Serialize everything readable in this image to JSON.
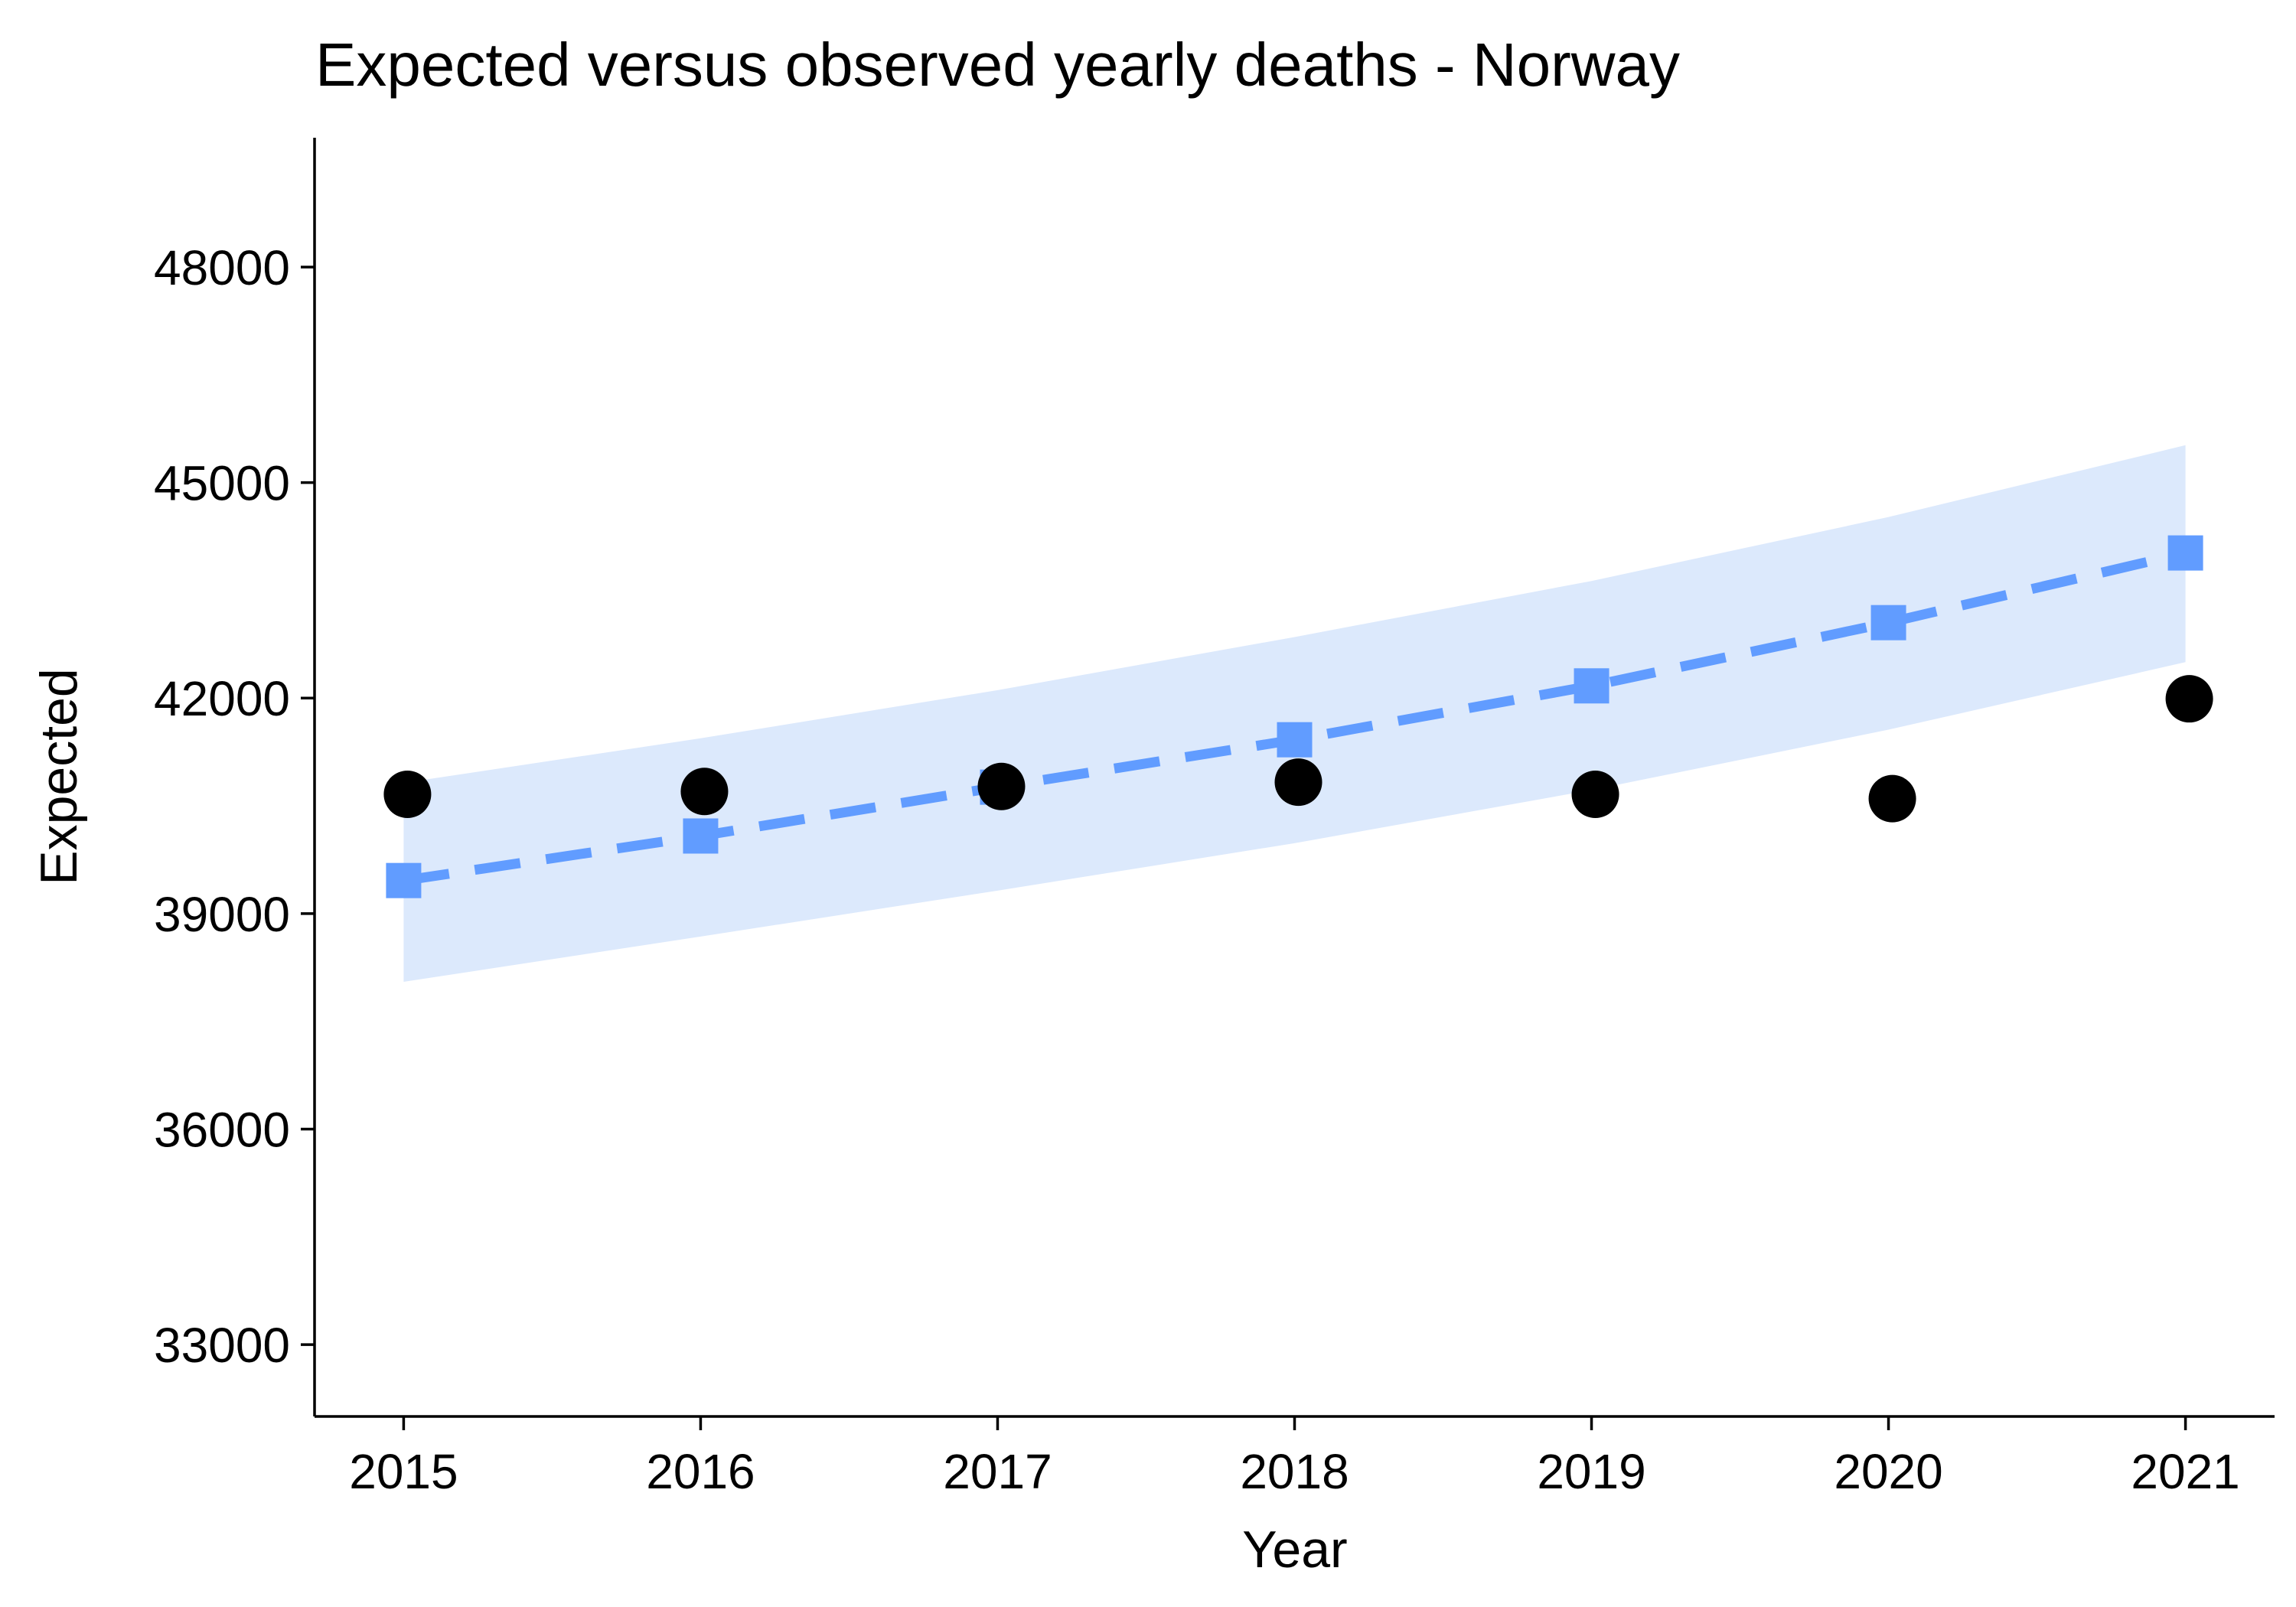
{
  "chart_data": {
    "type": "line",
    "title": "Expected versus observed yearly deaths - Norway",
    "xlabel": "Year",
    "ylabel": "Expected",
    "x": [
      2015,
      2016,
      2017,
      2018,
      2019,
      2020,
      2021
    ],
    "x_tick_labels": [
      "2015",
      "2016",
      "2017",
      "2018",
      "2019",
      "2020",
      "2021"
    ],
    "y_ticks": [
      33000,
      36000,
      39000,
      42000,
      45000,
      48000
    ],
    "y_tick_labels": [
      "33000",
      "36000",
      "39000",
      "42000",
      "45000",
      "48000"
    ],
    "xlim": [
      2014.7,
      2021.3
    ],
    "ylim": [
      32000,
      49800
    ],
    "grid": false,
    "series": [
      {
        "name": "",
        "kind": "dashed-line-with-square-markers",
        "color": "#619cff",
        "values": [
          39460,
          40080,
          40760,
          41420,
          42170,
          43050,
          44020
        ]
      },
      {
        "name": "",
        "kind": "band",
        "color": "#dce9fc",
        "lower": [
          38050,
          38680,
          39320,
          39980,
          40720,
          41560,
          42500
        ],
        "upper": [
          40820,
          41440,
          42110,
          42850,
          43630,
          44520,
          45520
        ]
      },
      {
        "name": "",
        "kind": "points",
        "color": "#000000",
        "values": [
          40660,
          40700,
          40770,
          40830,
          40660,
          40600,
          41990
        ]
      }
    ]
  }
}
